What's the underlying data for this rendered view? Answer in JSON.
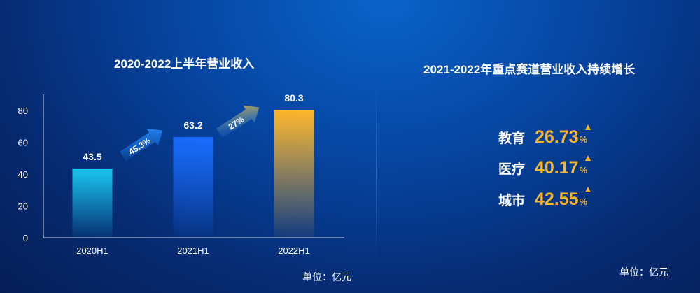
{
  "left_title": "2020-2022上半年营业收入",
  "right_title": "2021-2022年重点赛道营业收入持续增长",
  "unit_left": "单位：亿元",
  "unit_right": "单位：亿元",
  "chart_data": {
    "type": "bar",
    "title": "2020-2022上半年营业收入",
    "categories": [
      "2020H1",
      "2021H1",
      "2022H1"
    ],
    "values": [
      43.5,
      63.2,
      80.3
    ],
    "value_labels": [
      "43.5",
      "63.2",
      "80.3"
    ],
    "yticks": [
      0,
      20,
      40,
      60,
      80
    ],
    "ylim": [
      0,
      90
    ],
    "growth": [
      {
        "label": "45.3%",
        "from": "2020H1",
        "to": "2021H1"
      },
      {
        "label": "27%",
        "from": "2021H1",
        "to": "2022H1"
      }
    ],
    "colors": {
      "bars": [
        "#19c6ee",
        "#1a6cff",
        "#ffb62a"
      ],
      "axis": "#c7d3ee"
    }
  },
  "metrics": [
    {
      "label": "教育",
      "value": "26.73",
      "suffix": "%"
    },
    {
      "label": "医疗",
      "value": "40.17",
      "suffix": "%"
    },
    {
      "label": "城市",
      "value": "42.55",
      "suffix": "%"
    }
  ]
}
